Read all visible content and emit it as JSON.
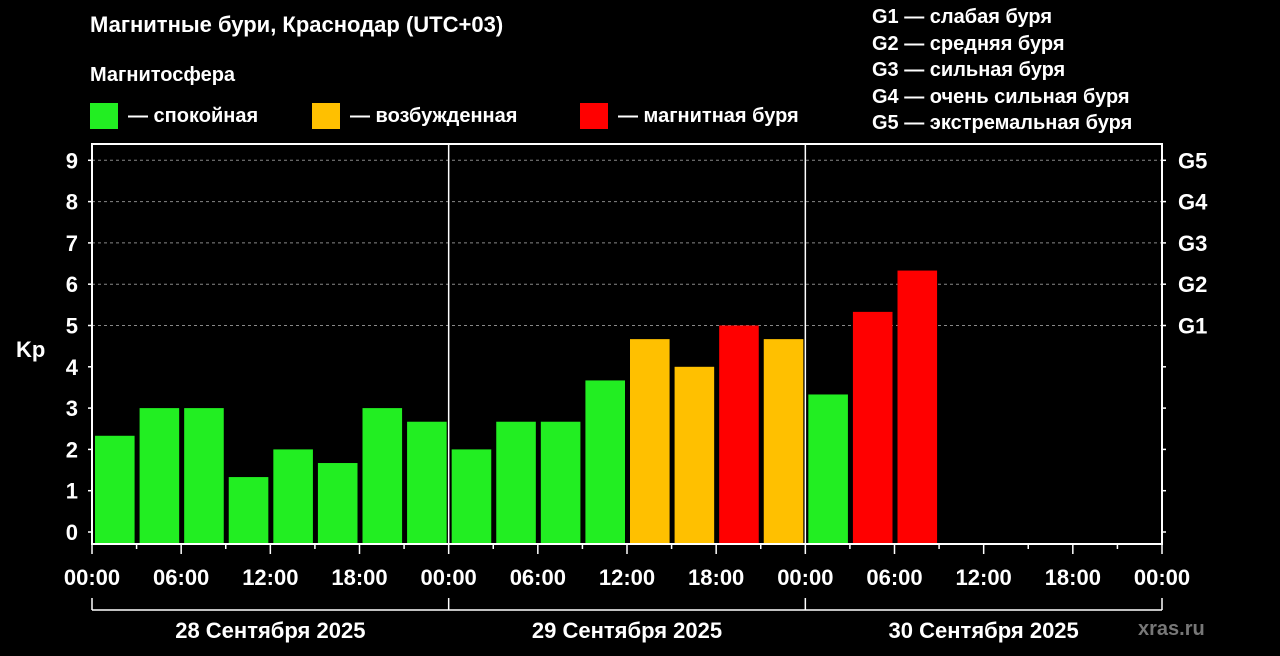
{
  "header": {
    "title": "Магнитные бури, Краснодар (UTC+03)",
    "subtitle": "Магнитосфера"
  },
  "legend": [
    {
      "label": "— спокойная",
      "color": "#22ee22"
    },
    {
      "label": "— возбужденная",
      "color": "#ffc000"
    },
    {
      "label": "— магнитная буря",
      "color": "#ff0000"
    }
  ],
  "g_scale": [
    "G1 — слабая буря",
    "G2 — средняя буря",
    "G3 — сильная буря",
    "G4 — очень сильная буря",
    "G5 — экстремальная буря"
  ],
  "watermark": "xras.ru",
  "chart_data": {
    "type": "bar",
    "ylabel": "Kp",
    "ylim": [
      0,
      9
    ],
    "y_ticks": [
      "0",
      "1",
      "2",
      "3",
      "4",
      "5",
      "6",
      "7",
      "8",
      "9"
    ],
    "right_ticks": [
      {
        "y": 5,
        "label": "G1"
      },
      {
        "y": 6,
        "label": "G2"
      },
      {
        "y": 7,
        "label": "G3"
      },
      {
        "y": 8,
        "label": "G4"
      },
      {
        "y": 9,
        "label": "G5"
      }
    ],
    "x_ticks": [
      "00:00",
      "06:00",
      "12:00",
      "18:00",
      "00:00",
      "06:00",
      "12:00",
      "18:00",
      "00:00",
      "06:00",
      "12:00",
      "18:00",
      "00:00"
    ],
    "days": [
      "28 Сентября 2025",
      "29 Сентября 2025",
      "30 Сентября 2025"
    ],
    "slots_total": 24,
    "grid_dashed_levels": [
      5,
      6,
      7,
      8,
      9
    ],
    "colors": {
      "quiet": "#22ee22",
      "active": "#ffc000",
      "storm": "#ff0000"
    },
    "values": [
      2.33,
      3.0,
      3.0,
      1.33,
      2.0,
      1.67,
      3.0,
      2.67,
      2.0,
      2.67,
      2.67,
      3.67,
      4.67,
      4.0,
      5.0,
      4.67,
      3.33,
      5.33,
      6.33
    ],
    "levels": [
      "quiet",
      "quiet",
      "quiet",
      "quiet",
      "quiet",
      "quiet",
      "quiet",
      "quiet",
      "quiet",
      "quiet",
      "quiet",
      "quiet",
      "active",
      "active",
      "storm",
      "active",
      "quiet",
      "storm",
      "storm"
    ]
  }
}
